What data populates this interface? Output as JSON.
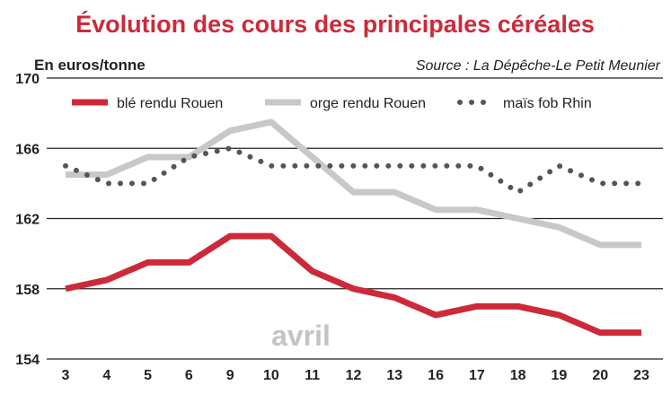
{
  "chart_data": {
    "type": "line",
    "title": "Évolution des cours des principales céréales",
    "unit_label": "En euros/tonne",
    "source": "Source : La Dépêche-Le Petit Meunier",
    "annotation": "avril",
    "categories": [
      "3",
      "4",
      "5",
      "6",
      "9",
      "10",
      "11",
      "12",
      "13",
      "16",
      "17",
      "18",
      "19",
      "20",
      "23"
    ],
    "ylim": [
      154,
      170
    ],
    "yticks": [
      154,
      158,
      162,
      166,
      170
    ],
    "grid": true,
    "legend_position": "top",
    "series": [
      {
        "name": "blé rendu Rouen",
        "color": "#cc2a3a",
        "style": "solid-thick",
        "values": [
          158,
          158.5,
          159.5,
          159.5,
          161,
          161,
          159,
          158,
          157.5,
          156.5,
          157,
          157,
          156.5,
          155.5,
          155.5
        ]
      },
      {
        "name": "orge rendu Rouen",
        "color": "#c8c8c8",
        "style": "solid-thick",
        "values": [
          164.5,
          164.5,
          165.5,
          165.5,
          167,
          167.5,
          165.5,
          163.5,
          163.5,
          162.5,
          162.5,
          162,
          161.5,
          160.5,
          160.5
        ]
      },
      {
        "name": "maïs fob Rhin",
        "color": "#555555",
        "style": "dotted",
        "values": [
          165,
          164,
          164,
          165.5,
          166,
          165,
          165,
          165,
          165,
          165,
          165,
          163.5,
          165,
          164,
          164
        ]
      }
    ],
    "colors": {
      "title": "#cc2a3a",
      "grid": "#222222"
    }
  }
}
